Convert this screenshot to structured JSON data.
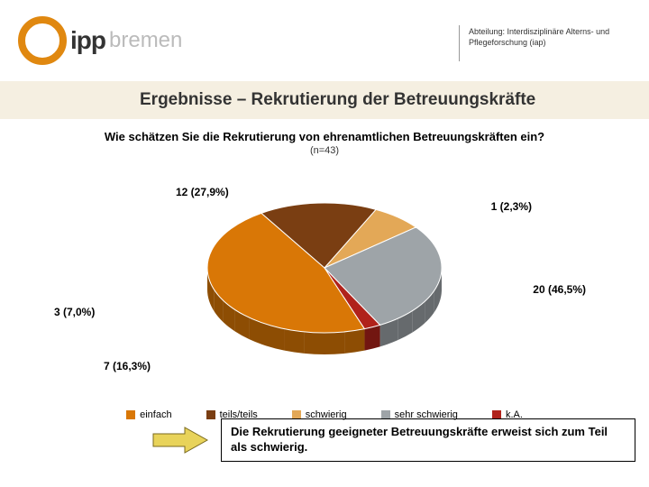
{
  "header": {
    "logo_ipp": "ipp",
    "logo_bremen": "bremen",
    "department_line1": "Abteilung: Interdisziplinäre Alterns- und",
    "department_line2": "Pflegeforschung (iap)"
  },
  "title": "Ergebnisse – Rekrutierung der Betreuungskräfte",
  "chart": {
    "type": "pie",
    "title": "Wie schätzen Sie die Rekrutierung von ehrenamtlichen Betreuungskräften ein?",
    "subtitle": "(n=43)",
    "slices": [
      {
        "label": "20 (46,5%)",
        "value": 46.5,
        "color": "#d97706",
        "legend": "einfach"
      },
      {
        "label": "7 (16,3%)",
        "value": 16.3,
        "color": "#7a3e12",
        "legend": "teils/teils"
      },
      {
        "label": "3 (7,0%)",
        "value": 7.0,
        "color": "#e3a857",
        "legend": "schwierig"
      },
      {
        "label": "12 (27,9%)",
        "value": 27.9,
        "color": "#9ea4a8",
        "legend": "sehr schwierig"
      },
      {
        "label": "1 (2,3%)",
        "value": 2.3,
        "color": "#b0221b",
        "legend": "k.A."
      }
    ],
    "legend_colors": [
      "#d97706",
      "#7a3e12",
      "#e3a857",
      "#9ea4a8",
      "#b0221b"
    ],
    "start_angle_deg": 70,
    "depth": 24,
    "background_color": "#ffffff",
    "title_fontsize": 13,
    "label_fontsize": 12
  },
  "callout": {
    "text": "Die Rekrutierung geeigneter Betreuungskräfte erweist sich zum Teil als schwierig.",
    "arrow_fill": "#e8d35a",
    "arrow_stroke": "#7a6a1e"
  }
}
